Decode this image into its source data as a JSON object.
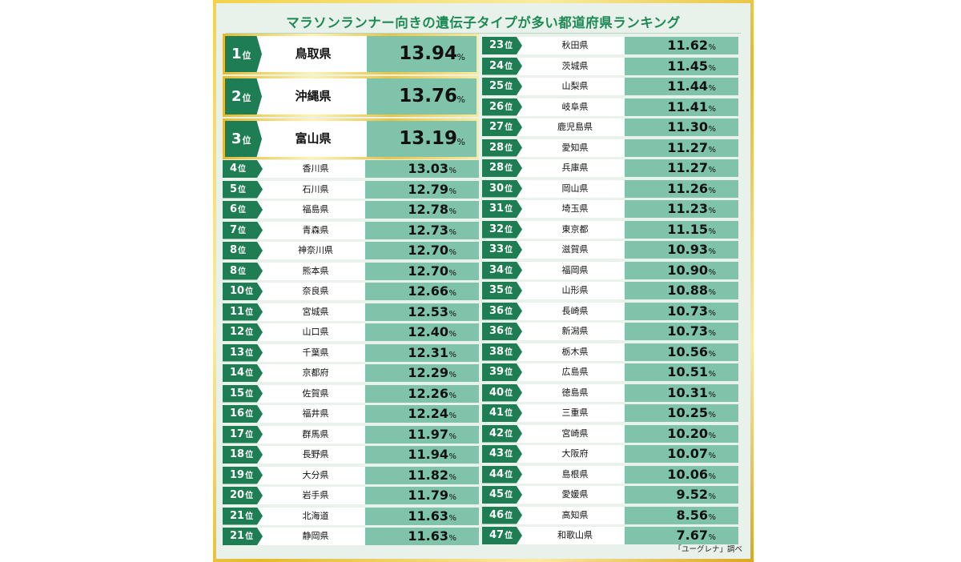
{
  "chart_data": {
    "type": "table",
    "title": "マラソンランナー向きの遺伝子タイプが多い都道府県ランキング",
    "rank_suffix": "位",
    "unit": "%",
    "source": "「ユーグレナ」調べ",
    "rows": [
      {
        "rank": "1",
        "name": "鳥取県",
        "value": "13.94"
      },
      {
        "rank": "2",
        "name": "沖縄県",
        "value": "13.76"
      },
      {
        "rank": "3",
        "name": "富山県",
        "value": "13.19"
      },
      {
        "rank": "4",
        "name": "香川県",
        "value": "13.03"
      },
      {
        "rank": "5",
        "name": "石川県",
        "value": "12.79"
      },
      {
        "rank": "6",
        "name": "福島県",
        "value": "12.78"
      },
      {
        "rank": "7",
        "name": "青森県",
        "value": "12.73"
      },
      {
        "rank": "8",
        "name": "神奈川県",
        "value": "12.70"
      },
      {
        "rank": "8",
        "name": "熊本県",
        "value": "12.70"
      },
      {
        "rank": "10",
        "name": "奈良県",
        "value": "12.66"
      },
      {
        "rank": "11",
        "name": "宮城県",
        "value": "12.53"
      },
      {
        "rank": "12",
        "name": "山口県",
        "value": "12.40"
      },
      {
        "rank": "13",
        "name": "千葉県",
        "value": "12.31"
      },
      {
        "rank": "14",
        "name": "京都府",
        "value": "12.29"
      },
      {
        "rank": "15",
        "name": "佐賀県",
        "value": "12.26"
      },
      {
        "rank": "16",
        "name": "福井県",
        "value": "12.24"
      },
      {
        "rank": "17",
        "name": "群馬県",
        "value": "11.97"
      },
      {
        "rank": "18",
        "name": "長野県",
        "value": "11.94"
      },
      {
        "rank": "19",
        "name": "大分県",
        "value": "11.82"
      },
      {
        "rank": "20",
        "name": "岩手県",
        "value": "11.79"
      },
      {
        "rank": "21",
        "name": "北海道",
        "value": "11.63"
      },
      {
        "rank": "21",
        "name": "静岡県",
        "value": "11.63"
      },
      {
        "rank": "23",
        "name": "秋田県",
        "value": "11.62"
      },
      {
        "rank": "24",
        "name": "茨城県",
        "value": "11.45"
      },
      {
        "rank": "25",
        "name": "山梨県",
        "value": "11.44"
      },
      {
        "rank": "26",
        "name": "岐阜県",
        "value": "11.41"
      },
      {
        "rank": "27",
        "name": "鹿児島県",
        "value": "11.30"
      },
      {
        "rank": "28",
        "name": "愛知県",
        "value": "11.27"
      },
      {
        "rank": "28",
        "name": "兵庫県",
        "value": "11.27"
      },
      {
        "rank": "30",
        "name": "岡山県",
        "value": "11.26"
      },
      {
        "rank": "31",
        "name": "埼玉県",
        "value": "11.23"
      },
      {
        "rank": "32",
        "name": "東京都",
        "value": "11.15"
      },
      {
        "rank": "33",
        "name": "滋賀県",
        "value": "10.93"
      },
      {
        "rank": "34",
        "name": "福岡県",
        "value": "10.90"
      },
      {
        "rank": "35",
        "name": "山形県",
        "value": "10.88"
      },
      {
        "rank": "36",
        "name": "長崎県",
        "value": "10.73"
      },
      {
        "rank": "36",
        "name": "新潟県",
        "value": "10.73"
      },
      {
        "rank": "38",
        "name": "栃木県",
        "value": "10.56"
      },
      {
        "rank": "39",
        "name": "広島県",
        "value": "10.51"
      },
      {
        "rank": "40",
        "name": "徳島県",
        "value": "10.31"
      },
      {
        "rank": "41",
        "name": "三重県",
        "value": "10.25"
      },
      {
        "rank": "42",
        "name": "宮崎県",
        "value": "10.20"
      },
      {
        "rank": "43",
        "name": "大阪府",
        "value": "10.07"
      },
      {
        "rank": "44",
        "name": "島根県",
        "value": "10.06"
      },
      {
        "rank": "45",
        "name": "愛媛県",
        "value": "9.52"
      },
      {
        "rank": "46",
        "name": "高知県",
        "value": "8.56"
      },
      {
        "rank": "47",
        "name": "和歌山県",
        "value": "7.67"
      }
    ]
  }
}
